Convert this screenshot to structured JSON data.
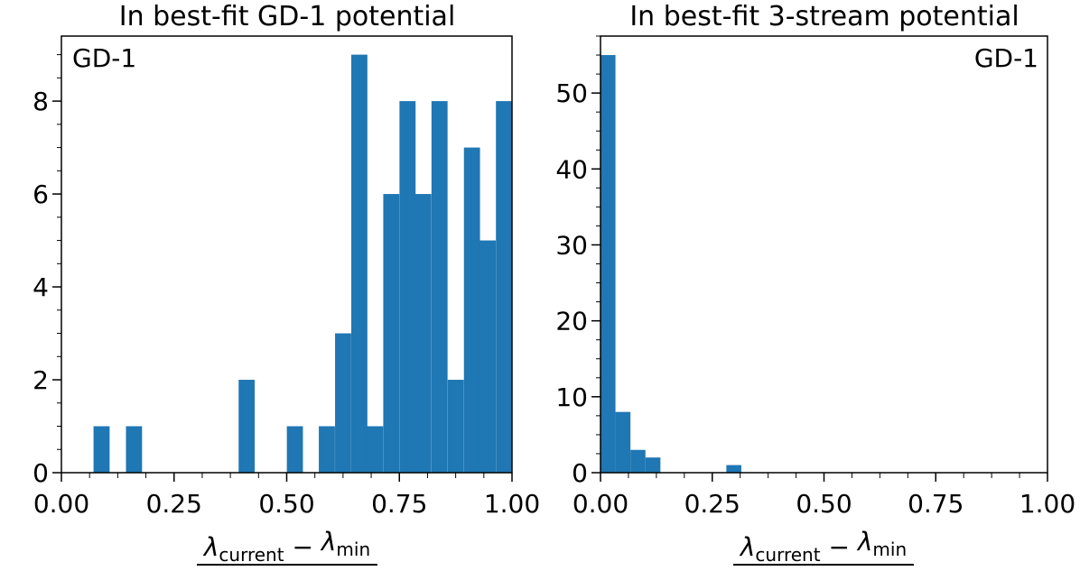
{
  "chart_data": [
    {
      "type": "bar",
      "title": "In best-fit GD-1 potential",
      "annotation": "GD-1",
      "xlabel_numerator": "λcurrent − λmin",
      "xlim": [
        0,
        1.0
      ],
      "ylim": [
        0,
        9.4
      ],
      "xticks": [
        "0.00",
        "0.25",
        "0.50",
        "0.75",
        "1.00"
      ],
      "yticks": [
        0,
        2,
        4,
        6,
        8
      ],
      "bin_width": 0.0357,
      "bins": [
        {
          "x": 0.107,
          "count": 1
        },
        {
          "x": 0.179,
          "count": 1
        },
        {
          "x": 0.429,
          "count": 2
        },
        {
          "x": 0.536,
          "count": 1
        },
        {
          "x": 0.607,
          "count": 1
        },
        {
          "x": 0.643,
          "count": 3
        },
        {
          "x": 0.679,
          "count": 9
        },
        {
          "x": 0.714,
          "count": 1
        },
        {
          "x": 0.75,
          "count": 6
        },
        {
          "x": 0.786,
          "count": 8
        },
        {
          "x": 0.821,
          "count": 6
        },
        {
          "x": 0.857,
          "count": 8
        },
        {
          "x": 0.893,
          "count": 2
        },
        {
          "x": 0.929,
          "count": 7
        },
        {
          "x": 0.964,
          "count": 5
        },
        {
          "x": 1.0,
          "count": 8
        }
      ],
      "color": "#1f77b4"
    },
    {
      "type": "bar",
      "title": "In best-fit 3-stream potential",
      "annotation": "GD-1",
      "xlabel_numerator": "λcurrent − λmin",
      "xlim": [
        0,
        1.0
      ],
      "ylim": [
        0,
        57.5
      ],
      "xticks": [
        "0.00",
        "0.25",
        "0.50",
        "0.75",
        "1.00"
      ],
      "yticks": [
        0,
        10,
        20,
        30,
        40,
        50
      ],
      "bin_width": 0.0335,
      "bins": [
        {
          "x": 0.0,
          "count": 55
        },
        {
          "x": 0.0335,
          "count": 8
        },
        {
          "x": 0.067,
          "count": 3
        },
        {
          "x": 0.1005,
          "count": 2
        },
        {
          "x": 0.2815,
          "count": 1
        }
      ],
      "color": "#1f77b4"
    }
  ]
}
